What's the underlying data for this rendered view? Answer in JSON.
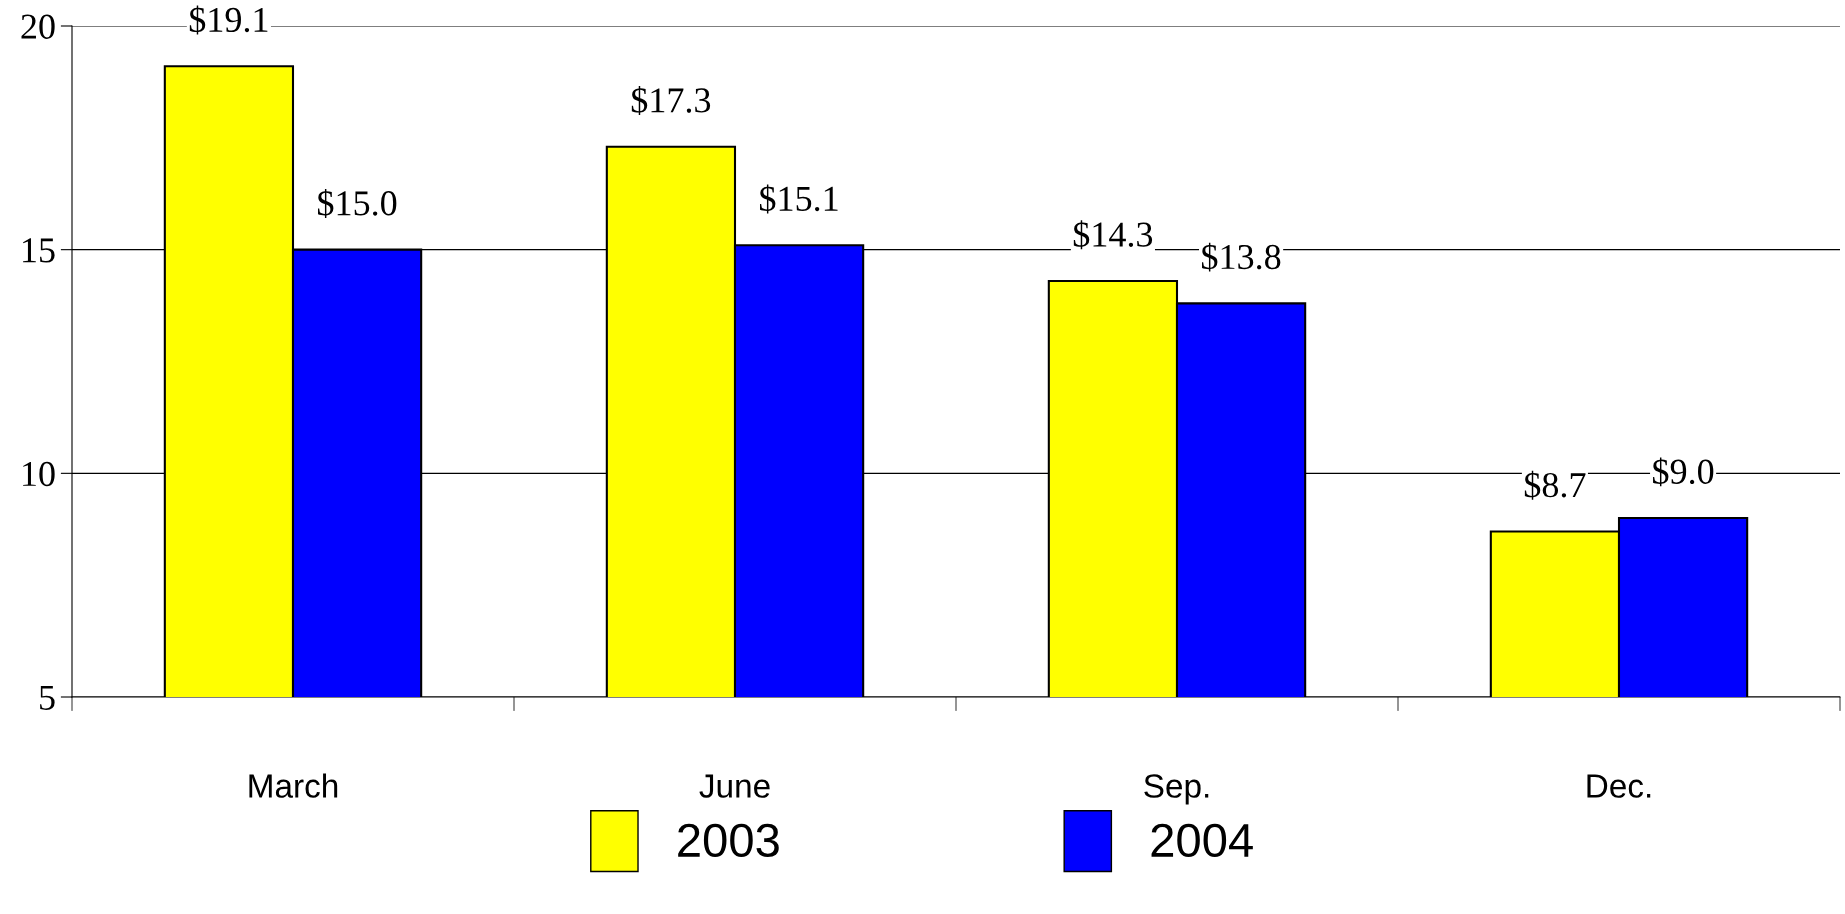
{
  "chart_data": {
    "type": "bar",
    "categories": [
      "March",
      "June",
      "Sep.",
      "Dec."
    ],
    "series": [
      {
        "name": "2003",
        "color": "#ffff00",
        "values": [
          19.1,
          17.3,
          14.3,
          8.7
        ],
        "value_labels": [
          "$19.1",
          "$17.3",
          "$14.3",
          "$8.7"
        ]
      },
      {
        "name": "2004",
        "color": "#0000ff",
        "values": [
          15.0,
          15.1,
          13.8,
          9.0
        ],
        "value_labels": [
          "$15.0",
          "$15.1",
          "$13.8",
          "$9.0"
        ]
      }
    ],
    "ylim": [
      5,
      20
    ],
    "yticks": [
      5,
      10,
      15,
      20
    ],
    "grid": "y",
    "legend": "bottom"
  }
}
